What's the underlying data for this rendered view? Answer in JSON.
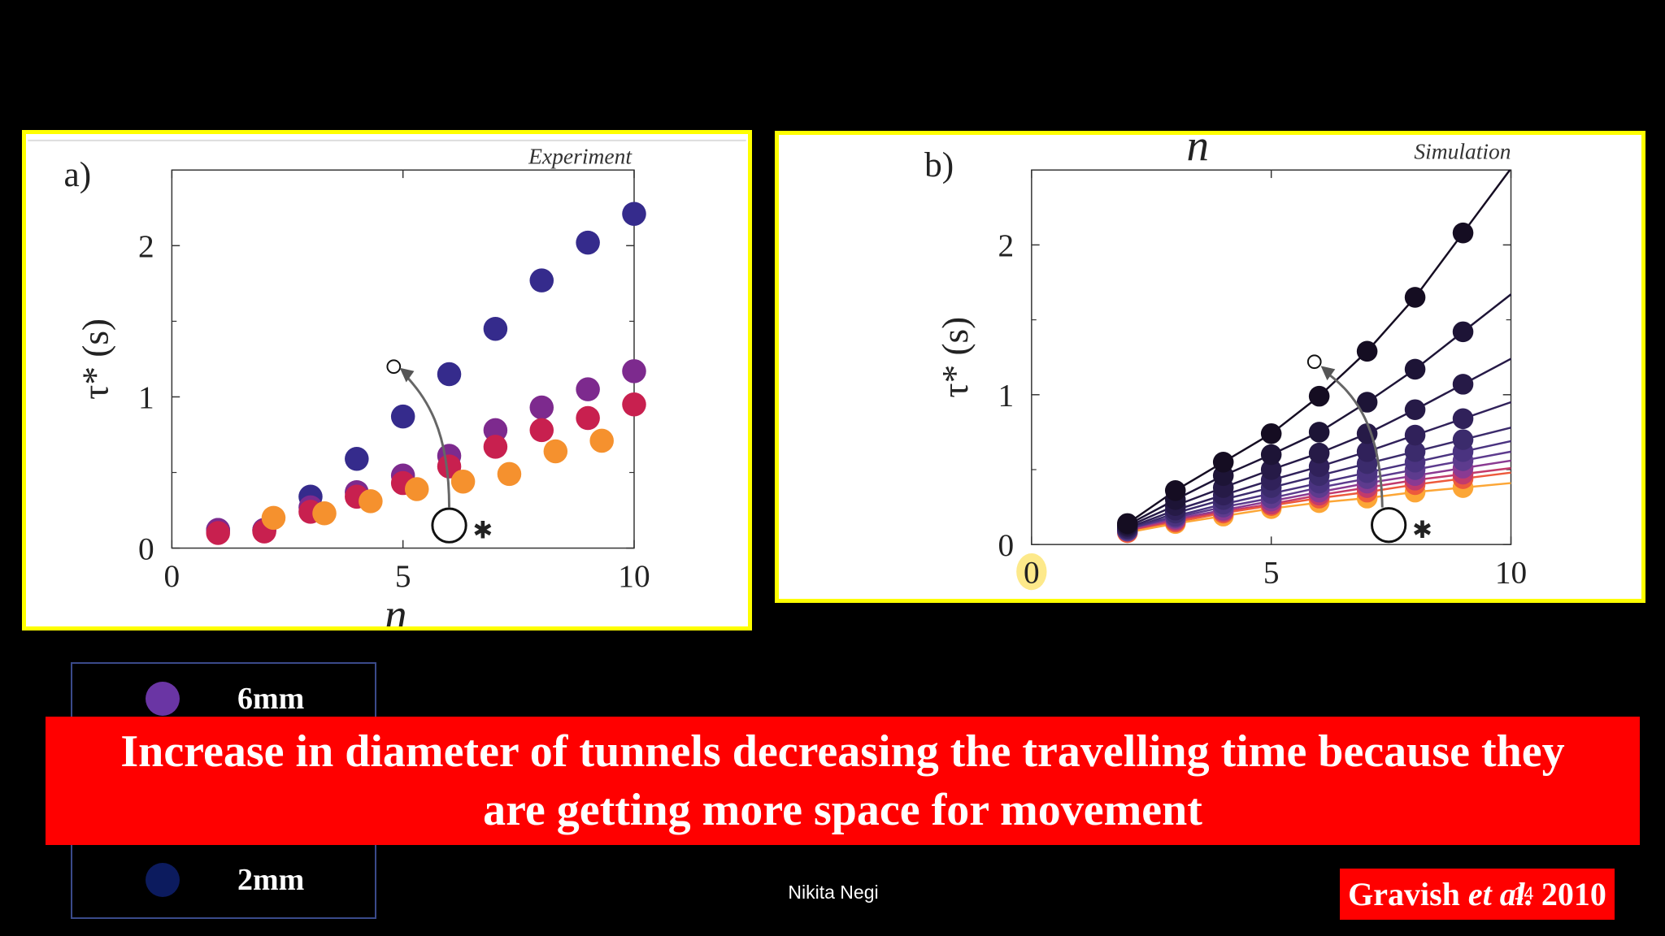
{
  "chart_data": [
    {
      "type": "scatter",
      "panel_label": "a)",
      "corner_label": "Experiment",
      "xlabel": "n",
      "ylabel": "τ* (s)",
      "xlim": [
        0,
        10
      ],
      "ylim": [
        0,
        2.5
      ],
      "x_ticks": [
        "0",
        "5",
        "10"
      ],
      "y_ticks": [
        "0",
        "1",
        "2"
      ],
      "series": [
        {
          "color": "#352b8c",
          "points": [
            [
              1,
              0.12
            ],
            [
              2,
              0.12
            ],
            [
              3,
              0.34
            ],
            [
              4,
              0.59
            ],
            [
              5,
              0.87
            ],
            [
              6,
              1.15
            ],
            [
              7,
              1.45
            ],
            [
              8,
              1.77
            ],
            [
              9,
              2.02
            ],
            [
              10,
              2.21
            ]
          ]
        },
        {
          "color": "#7d2a8e",
          "points": [
            [
              1,
              0.12
            ],
            [
              2,
              0.12
            ],
            [
              3,
              0.27
            ],
            [
              4,
              0.37
            ],
            [
              5,
              0.48
            ],
            [
              6,
              0.61
            ],
            [
              7,
              0.78
            ],
            [
              8,
              0.93
            ],
            [
              9,
              1.05
            ],
            [
              10,
              1.17
            ]
          ]
        },
        {
          "color": "#c8204f",
          "points": [
            [
              1,
              0.1
            ],
            [
              2,
              0.11
            ],
            [
              3,
              0.24
            ],
            [
              4,
              0.34
            ],
            [
              5,
              0.43
            ],
            [
              6,
              0.54
            ],
            [
              7,
              0.67
            ],
            [
              8,
              0.78
            ],
            [
              9,
              0.86
            ],
            [
              10,
              0.95
            ]
          ]
        },
        {
          "color": "#f5912e",
          "points": [
            [
              2.2,
              0.2
            ],
            [
              3.3,
              0.23
            ],
            [
              4.3,
              0.31
            ],
            [
              5.3,
              0.39
            ],
            [
              6.3,
              0.44
            ],
            [
              7.3,
              0.49
            ],
            [
              8.3,
              0.64
            ],
            [
              9.3,
              0.71
            ]
          ]
        }
      ]
    },
    {
      "type": "line",
      "panel_label": "b)",
      "corner_label": "Simulation",
      "xlabel": "n",
      "ylabel": "τ* (s)",
      "xlim": [
        0,
        10
      ],
      "ylim": [
        0,
        2.5
      ],
      "x_ticks": [
        "0",
        "5",
        "10"
      ],
      "y_ticks": [
        "0",
        "1",
        "2"
      ],
      "x_points": [
        2,
        3,
        4,
        5,
        6,
        7,
        8,
        9
      ],
      "series": [
        {
          "color": "#150d22",
          "values": [
            0.14,
            0.36,
            0.55,
            0.74,
            0.99,
            1.29,
            1.65,
            2.08
          ]
        },
        {
          "color": "#1d1436",
          "values": [
            0.13,
            0.3,
            0.46,
            0.6,
            0.75,
            0.95,
            1.17,
            1.42
          ]
        },
        {
          "color": "#261a47",
          "values": [
            0.12,
            0.26,
            0.38,
            0.5,
            0.61,
            0.74,
            0.9,
            1.07
          ]
        },
        {
          "color": "#30215a",
          "values": [
            0.11,
            0.23,
            0.33,
            0.43,
            0.52,
            0.62,
            0.73,
            0.84
          ]
        },
        {
          "color": "#3b2b6c",
          "values": [
            0.1,
            0.21,
            0.3,
            0.38,
            0.46,
            0.54,
            0.62,
            0.7
          ]
        },
        {
          "color": "#4a3380",
          "values": [
            0.1,
            0.19,
            0.27,
            0.34,
            0.41,
            0.48,
            0.55,
            0.62
          ]
        },
        {
          "color": "#5d3b8e",
          "values": [
            0.09,
            0.18,
            0.25,
            0.31,
            0.38,
            0.44,
            0.5,
            0.56
          ]
        },
        {
          "color": "#8a3a92",
          "values": [
            0.09,
            0.17,
            0.23,
            0.29,
            0.35,
            0.41,
            0.46,
            0.51
          ]
        },
        {
          "color": "#c23a6c",
          "values": [
            0.09,
            0.16,
            0.22,
            0.27,
            0.33,
            0.38,
            0.43,
            0.47
          ]
        },
        {
          "color": "#ed5a3c",
          "values": [
            0.08,
            0.15,
            0.21,
            0.26,
            0.31,
            0.35,
            0.4,
            0.44
          ]
        },
        {
          "color": "#fca636",
          "values": [
            0.08,
            0.14,
            0.19,
            0.24,
            0.28,
            0.31,
            0.35,
            0.38
          ]
        }
      ]
    }
  ],
  "legend": [
    {
      "label": "6mm",
      "color": "#6a35a4"
    },
    {
      "label": "2mm",
      "color": "#0c1b5e"
    }
  ],
  "banner": {
    "line1": "Increase in diameter of tunnels decreasing the  travelling time  because they",
    "line2": "are getting  more space for movement"
  },
  "author": "Nikita Negi",
  "citation": {
    "prefix": "Gravish ",
    "italic": "et al.",
    "year": " 2010"
  },
  "slide_number": "14"
}
